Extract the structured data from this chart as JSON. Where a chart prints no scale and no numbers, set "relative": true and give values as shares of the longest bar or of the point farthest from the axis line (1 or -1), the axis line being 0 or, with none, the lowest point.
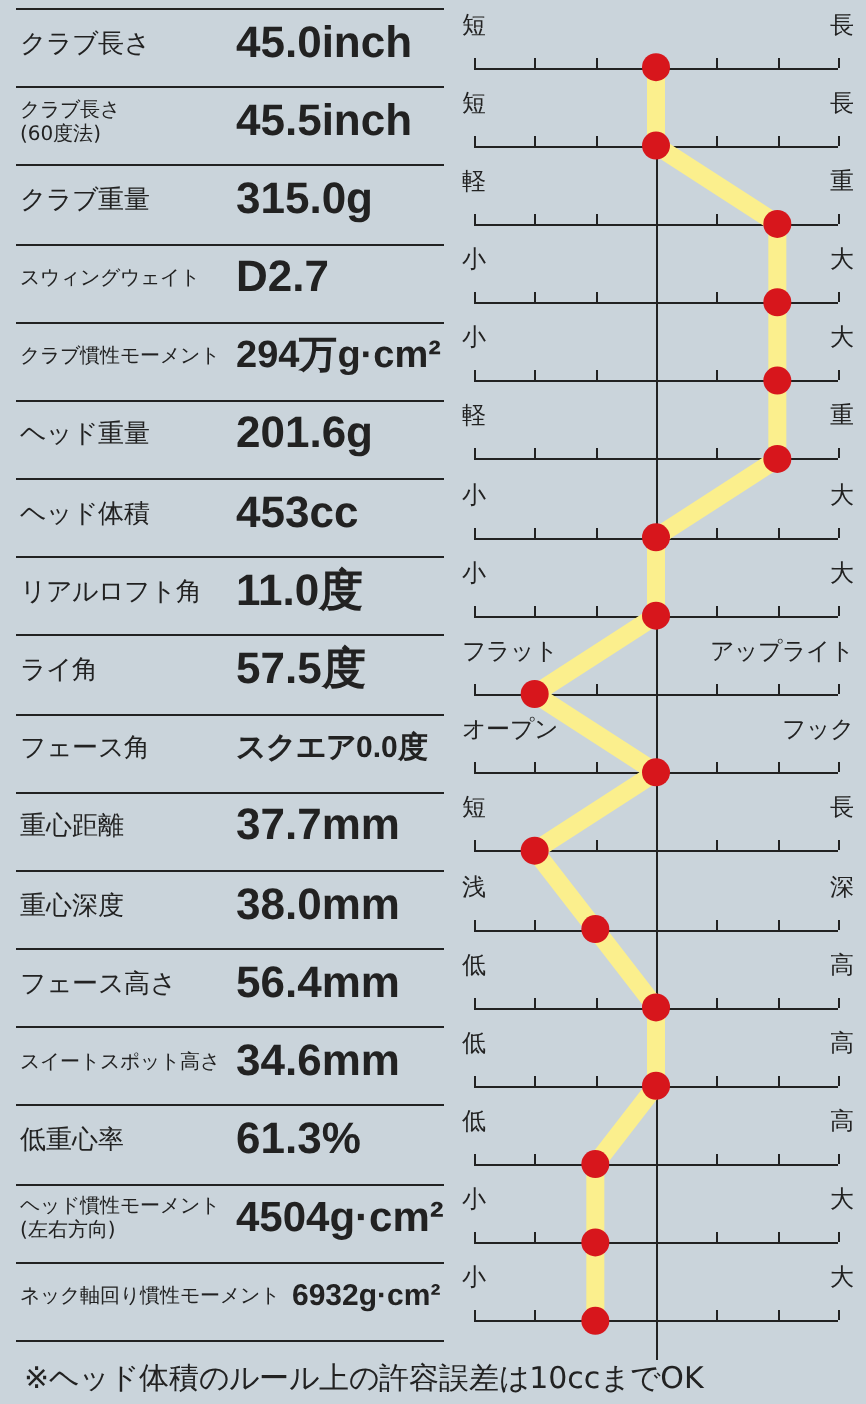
{
  "chart_data": {
    "type": "line",
    "orientation": "horizontal",
    "relative": true,
    "legend": false,
    "grid": "y",
    "marker": "circle",
    "line_style": "solid",
    "categories": [
      "クラブ長さ",
      "クラブ長さ(60度法)",
      "クラブ重量",
      "スウィングウェイト",
      "クラブ慣性モーメント",
      "ヘッド重量",
      "ヘッド体積",
      "リアルロフト角",
      "ライ角",
      "フェース角",
      "重心距離",
      "重心深度",
      "フェース高さ",
      "スイートスポット高さ",
      "低重心率",
      "ヘッド慣性モーメント(左右方向)",
      "ネック軸回り慣性モーメント"
    ],
    "series": [
      {
        "color": "#fbef8d",
        "colors": [
          "#d7161c",
          "#d7161c",
          "#d7161c",
          "#d7161c",
          "#d7161c",
          "#d7161c",
          "#d7161c",
          "#d7161c",
          "#d7161c",
          "#d7161c",
          "#d7161c",
          "#d7161c",
          "#d7161c",
          "#d7161c",
          "#d7161c",
          "#d7161c",
          "#d7161c"
        ],
        "values": [
          0,
          0,
          1,
          1,
          1,
          1,
          0,
          0,
          -1,
          0,
          -1,
          -0.5,
          0,
          0,
          -0.5,
          -0.5,
          -0.5
        ]
      }
    ],
    "annotations": [
      "45.0inch",
      "短",
      "長",
      "45.5inch",
      "短",
      "長",
      "315.0g",
      "軽",
      "重",
      "D2.7",
      "小",
      "大",
      "294万g·cm²",
      "小",
      "大",
      "201.6g",
      "軽",
      "重",
      "453cc",
      "小",
      "大",
      "11.0度",
      "小",
      "大",
      "57.5度",
      "フラット",
      "アップライト",
      "スクエア0.0度",
      "オープン",
      "フック",
      "37.7mm",
      "短",
      "長",
      "38.0mm",
      "浅",
      "深",
      "56.4mm",
      "低",
      "高",
      "34.6mm",
      "低",
      "高",
      "61.3%",
      "低",
      "高",
      "4504g·cm²",
      "小",
      "大",
      "6932g·cm²",
      "小",
      "大",
      "※ヘッド体積のルール上の許容誤差は10ccまでOK"
    ]
  }
}
